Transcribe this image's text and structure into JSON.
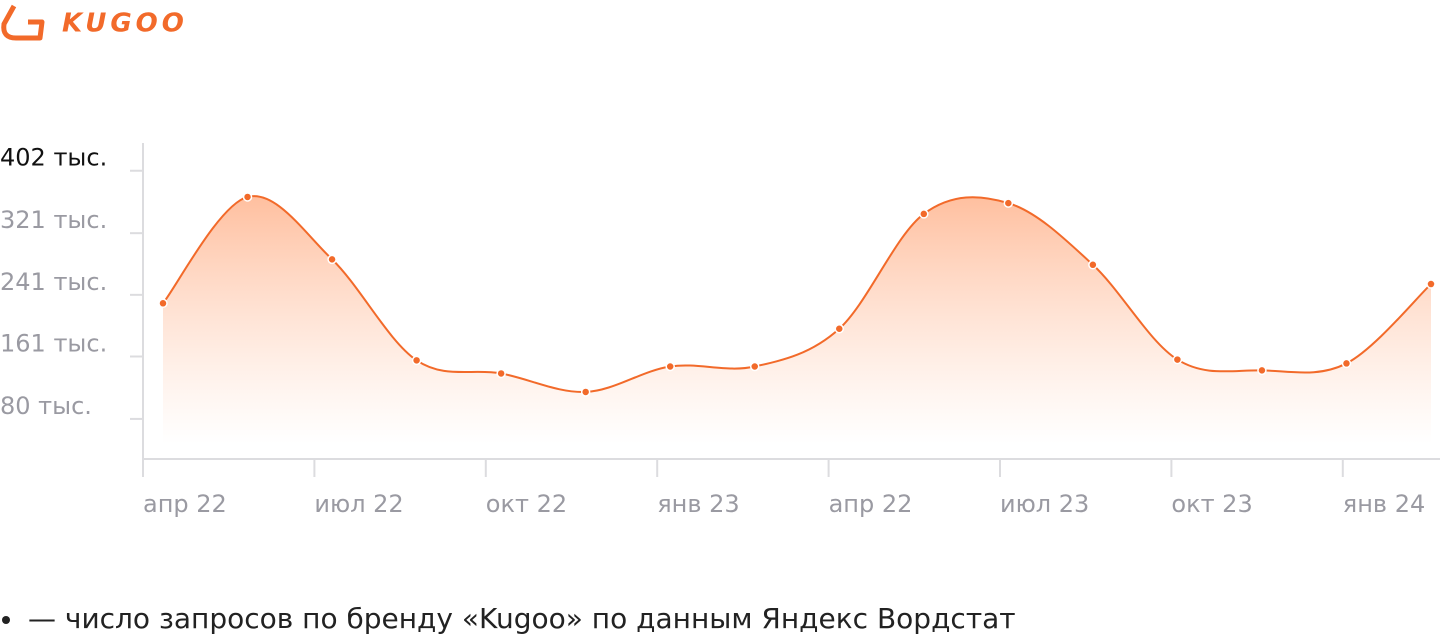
{
  "brand": "KUGOO",
  "chart_data": {
    "type": "line",
    "x_labels": [
      "апр 22",
      "июл 22",
      "окт 22",
      "янв 23",
      "апр 22",
      "июл 23",
      "окт 23",
      "янв 24"
    ],
    "values": [
      230,
      368,
      287,
      156,
      139,
      115,
      148,
      148,
      197,
      346,
      360,
      280,
      157,
      143,
      152,
      255
    ],
    "color": "#f26a2a",
    "ylim": [
      28,
      438
    ],
    "yticks": [
      {
        "value": 80,
        "label": "80 тыс."
      },
      {
        "value": 161,
        "label": "161 тыс."
      },
      {
        "value": 241,
        "label": "241 тыс."
      },
      {
        "value": 321,
        "label": "321 тыс."
      },
      {
        "value": 402,
        "label": "402 тыс."
      }
    ]
  },
  "note": "— число запросов по бренду «Kugoo» по данным Яндекс Вордстат"
}
